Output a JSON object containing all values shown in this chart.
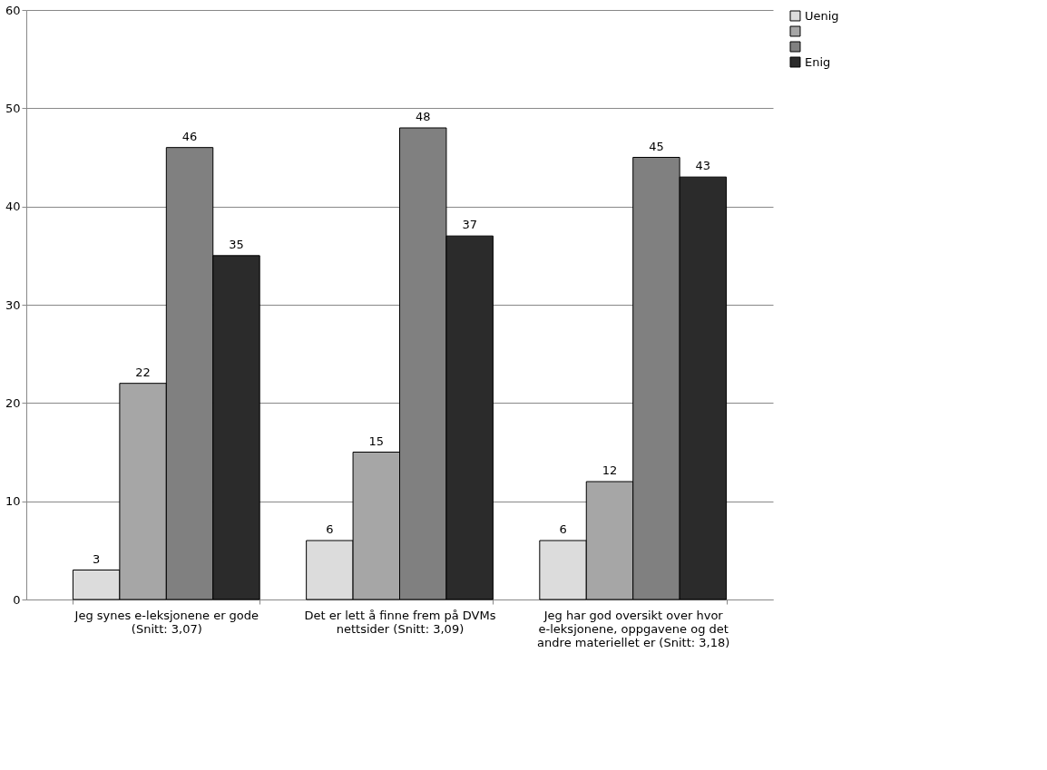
{
  "chart_data": {
    "type": "bar",
    "categories": [
      "Jeg synes e-leksjonene er gode (Snitt: 3,07)",
      "Det er lett å finne frem på DVMs nettsider (Snitt: 3,09)",
      "Jeg har god oversikt over hvor e-leksjonene, oppgavene og det andre materiellet er (Snitt: 3,18)"
    ],
    "series": [
      {
        "name": "Uenig",
        "color": "#dcdcdc",
        "values": [
          3,
          6,
          6
        ]
      },
      {
        "color": "#a6a6a6",
        "values": [
          22,
          15,
          12
        ]
      },
      {
        "color": "#808080",
        "values": [
          46,
          48,
          45
        ]
      },
      {
        "name": "Enig",
        "color": "#2b2b2b",
        "values": [
          35,
          37,
          43
        ]
      }
    ],
    "ylim": [
      0,
      60
    ],
    "yticks": [
      0,
      10,
      20,
      30,
      40,
      50,
      60
    ],
    "grid": "y",
    "legend": "right",
    "data_labels": true
  }
}
